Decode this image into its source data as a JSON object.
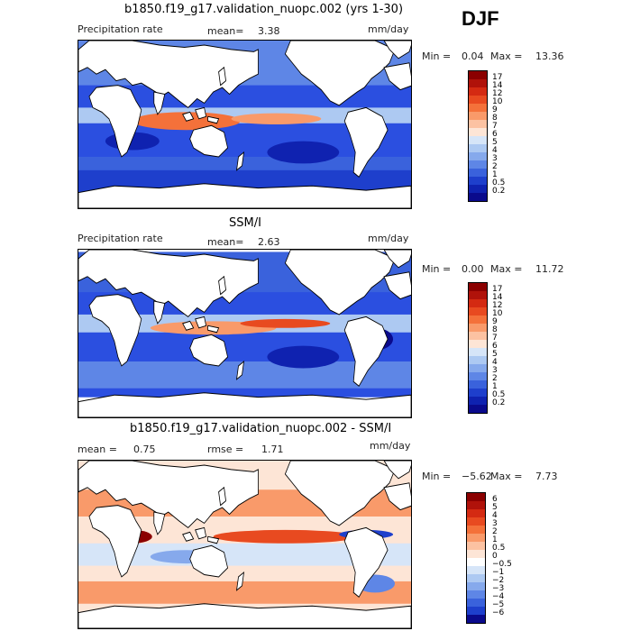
{
  "season": "DJF",
  "panels": [
    {
      "title": "b1850.f19_g17.validation_nuopc.002 (yrs 1-30)",
      "left_label": "Precipitation rate",
      "stat1_label": "mean=",
      "stat1_value": "3.38",
      "stat2_label": "",
      "stat2_value": "",
      "units": "mm/day",
      "min_label": "Min =",
      "min_value": "0.04",
      "max_label": "Max =",
      "max_value": "13.36",
      "colorbar": {
        "ticks": [
          "17",
          "14",
          "12",
          "10",
          "9",
          "8",
          "7",
          "6",
          "5",
          "4",
          "3",
          "2",
          "1",
          "0.5",
          "0.2"
        ],
        "colors": [
          "#8b0000",
          "#b0120a",
          "#d42a12",
          "#e84a20",
          "#f4713a",
          "#f99a6a",
          "#fcc2a2",
          "#fde5d6",
          "#d6e5f8",
          "#adc9f2",
          "#86a9ec",
          "#5e86e6",
          "#3a62dc",
          "#1e3fcc",
          "#0f22b0",
          "#0a0a8c"
        ]
      }
    },
    {
      "title": "SSM/I",
      "left_label": "Precipitation rate",
      "stat1_label": "mean=",
      "stat1_value": "2.63",
      "stat2_label": "",
      "stat2_value": "",
      "units": "mm/day",
      "min_label": "Min =",
      "min_value": "0.00",
      "max_label": "Max =",
      "max_value": "11.72",
      "colorbar": {
        "ticks": [
          "17",
          "14",
          "12",
          "10",
          "9",
          "8",
          "7",
          "6",
          "5",
          "4",
          "3",
          "2",
          "1",
          "0.5",
          "0.2"
        ],
        "colors": [
          "#8b0000",
          "#b0120a",
          "#d42a12",
          "#e84a20",
          "#f4713a",
          "#f99a6a",
          "#fcc2a2",
          "#fde5d6",
          "#d6e5f8",
          "#adc9f2",
          "#86a9ec",
          "#5e86e6",
          "#3a62dc",
          "#1e3fcc",
          "#0f22b0",
          "#0a0a8c"
        ]
      }
    },
    {
      "title": "b1850.f19_g17.validation_nuopc.002 - SSM/I",
      "left_label": "",
      "stat1_label": "mean =",
      "stat1_value": "0.75",
      "stat2_label": "rmse =",
      "stat2_value": "1.71",
      "units": "mm/day",
      "min_label": "Min =",
      "min_value": "−5.62",
      "max_label": "Max =",
      "max_value": "7.73",
      "colorbar": {
        "ticks": [
          "6",
          "5",
          "4",
          "3",
          "2",
          "1",
          "0.5",
          "0",
          "−0.5",
          "−1",
          "−2",
          "−3",
          "−4",
          "−5",
          "−6"
        ],
        "colors": [
          "#8b0000",
          "#b0120a",
          "#d42a12",
          "#e84a20",
          "#f4713a",
          "#f99a6a",
          "#fcc2a2",
          "#fde5d6",
          "#ffffff",
          "#d6e5f8",
          "#adc9f2",
          "#86a9ec",
          "#5e86e6",
          "#3a62dc",
          "#1e3fcc",
          "#0a0a8c"
        ]
      }
    }
  ],
  "chart_data": [
    {
      "type": "heatmap",
      "title": "b1850.f19_g17.validation_nuopc.002 (yrs 1-30)",
      "variable": "Precipitation rate",
      "units": "mm/day",
      "mean": 3.38,
      "min": 0.04,
      "max": 13.36,
      "levels": [
        0.2,
        0.5,
        1,
        2,
        3,
        4,
        5,
        6,
        7,
        8,
        9,
        10,
        12,
        14,
        17
      ]
    },
    {
      "type": "heatmap",
      "title": "SSM/I",
      "variable": "Precipitation rate",
      "units": "mm/day",
      "mean": 2.63,
      "min": 0.0,
      "max": 11.72,
      "levels": [
        0.2,
        0.5,
        1,
        2,
        3,
        4,
        5,
        6,
        7,
        8,
        9,
        10,
        12,
        14,
        17
      ]
    },
    {
      "type": "heatmap",
      "title": "b1850.f19_g17.validation_nuopc.002 - SSM/I",
      "units": "mm/day",
      "mean": 0.75,
      "rmse": 1.71,
      "min": -5.62,
      "max": 7.73,
      "levels": [
        -6,
        -5,
        -4,
        -3,
        -2,
        -1,
        -0.5,
        0,
        0.5,
        1,
        2,
        3,
        4,
        5,
        6
      ]
    }
  ]
}
